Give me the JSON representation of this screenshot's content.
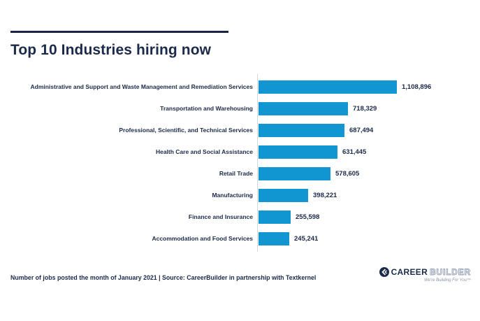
{
  "page": {
    "title": "Top 10 Industries hiring now"
  },
  "footer": {
    "note": "Number of jobs posted the month of January 2021 | Source: CareerBuilder in partnership with Textkernel"
  },
  "logo": {
    "part1": "CAREER",
    "part2": "BUILDER",
    "tagline": "We're Building For You™"
  },
  "colors": {
    "navy": "#1b2a4a",
    "bar_blue": "#1196d2",
    "axis_line": "#ccd9e5"
  },
  "chart_data": {
    "type": "bar",
    "orientation": "horizontal",
    "title": "Top 10 Industries hiring now",
    "categories": [
      "Administrative and Support and Waste Management and Remediation Services",
      "Transportation and Warehousing",
      "Professional, Scientific, and Technical Services",
      "Health Care and Social Assistance",
      "Retail Trade",
      "Manufacturing",
      "Finance and Insurance",
      "Accommodation and Food Services"
    ],
    "values": [
      1108896,
      718329,
      687494,
      631445,
      578605,
      398221,
      255598,
      245241
    ],
    "value_labels": [
      "1,108,896",
      "718,329",
      "687,494",
      "631,445",
      "578,605",
      "398,221",
      "255,598",
      "245,241"
    ],
    "xlabel": "",
    "ylabel": "",
    "xlim": [
      0,
      1108896
    ],
    "grid": false,
    "legend": false,
    "data_labels": true
  }
}
